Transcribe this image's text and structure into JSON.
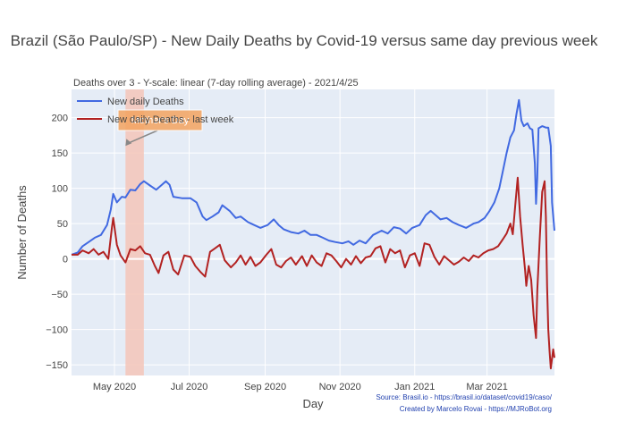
{
  "chart_data": {
    "type": "line",
    "title": "Brazil (São Paulo/SP) - New Daily Deaths by Covid-19 versus same day previous week",
    "subtitle": "Deaths over 3 - Y-scale: linear (7-day rolling average) - 2021/4/25",
    "xlabel": "Day",
    "ylabel": "Number of Deaths",
    "x_range": [
      "2020-03-27",
      "2021-04-25"
    ],
    "ylim": [
      -165,
      240
    ],
    "x_ticks": [
      {
        "date": "2020-05-01",
        "label": "May 2020"
      },
      {
        "date": "2020-07-01",
        "label": "Jul 2020"
      },
      {
        "date": "2020-09-01",
        "label": "Sep 2020"
      },
      {
        "date": "2020-11-01",
        "label": "Nov 2020"
      },
      {
        "date": "2021-01-01",
        "label": "Jan 2021"
      },
      {
        "date": "2021-03-01",
        "label": "Mar 2021"
      }
    ],
    "y_ticks": [
      {
        "value": 200,
        "label": "200"
      },
      {
        "value": 150,
        "label": "150"
      },
      {
        "value": 100,
        "label": "100"
      },
      {
        "value": 50,
        "label": "50"
      },
      {
        "value": 0,
        "label": "0"
      },
      {
        "value": -50,
        "label": "−50"
      },
      {
        "value": -100,
        "label": "−100"
      },
      {
        "value": -150,
        "label": "−150"
      }
    ],
    "grid": true,
    "legend_position": "top-left",
    "highlight_band": {
      "start": "2020-05-10",
      "end": "2020-05-25",
      "color": "#f4c6b8"
    },
    "annotation": {
      "text": "Mother's Day",
      "date": "2020-05-10",
      "y": 160,
      "bg": "#f4a460"
    },
    "footnotes": [
      "Source: Brasil.io - https://brasil.io/dataset/covid19/caso/",
      "Created by Marcelo Rovai - https://MJRoBot.org"
    ],
    "series": [
      {
        "name": "New daily Deaths",
        "color": "#4169e1",
        "points": [
          [
            "2020-03-27",
            6
          ],
          [
            "2020-04-01",
            9
          ],
          [
            "2020-04-05",
            18
          ],
          [
            "2020-04-10",
            24
          ],
          [
            "2020-04-15",
            30
          ],
          [
            "2020-04-20",
            34
          ],
          [
            "2020-04-25",
            48
          ],
          [
            "2020-04-28",
            70
          ],
          [
            "2020-04-30",
            92
          ],
          [
            "2020-05-03",
            80
          ],
          [
            "2020-05-07",
            88
          ],
          [
            "2020-05-10",
            87
          ],
          [
            "2020-05-14",
            98
          ],
          [
            "2020-05-18",
            97
          ],
          [
            "2020-05-22",
            106
          ],
          [
            "2020-05-25",
            110
          ],
          [
            "2020-05-30",
            104
          ],
          [
            "2020-06-04",
            98
          ],
          [
            "2020-06-08",
            104
          ],
          [
            "2020-06-12",
            110
          ],
          [
            "2020-06-15",
            105
          ],
          [
            "2020-06-18",
            88
          ],
          [
            "2020-06-25",
            86
          ],
          [
            "2020-07-02",
            86
          ],
          [
            "2020-07-07",
            80
          ],
          [
            "2020-07-12",
            60
          ],
          [
            "2020-07-15",
            55
          ],
          [
            "2020-07-20",
            60
          ],
          [
            "2020-07-25",
            66
          ],
          [
            "2020-07-28",
            76
          ],
          [
            "2020-08-03",
            68
          ],
          [
            "2020-08-08",
            58
          ],
          [
            "2020-08-12",
            60
          ],
          [
            "2020-08-18",
            52
          ],
          [
            "2020-08-23",
            48
          ],
          [
            "2020-08-28",
            44
          ],
          [
            "2020-09-03",
            48
          ],
          [
            "2020-09-08",
            56
          ],
          [
            "2020-09-12",
            48
          ],
          [
            "2020-09-16",
            42
          ],
          [
            "2020-09-22",
            38
          ],
          [
            "2020-09-28",
            36
          ],
          [
            "2020-10-03",
            40
          ],
          [
            "2020-10-08",
            34
          ],
          [
            "2020-10-13",
            34
          ],
          [
            "2020-10-18",
            30
          ],
          [
            "2020-10-23",
            26
          ],
          [
            "2020-10-28",
            24
          ],
          [
            "2020-11-03",
            22
          ],
          [
            "2020-11-08",
            25
          ],
          [
            "2020-11-12",
            20
          ],
          [
            "2020-11-17",
            26
          ],
          [
            "2020-11-22",
            22
          ],
          [
            "2020-11-28",
            34
          ],
          [
            "2020-12-05",
            40
          ],
          [
            "2020-12-10",
            36
          ],
          [
            "2020-12-15",
            45
          ],
          [
            "2020-12-20",
            43
          ],
          [
            "2020-12-25",
            36
          ],
          [
            "2020-12-30",
            44
          ],
          [
            "2021-01-05",
            48
          ],
          [
            "2021-01-10",
            62
          ],
          [
            "2021-01-14",
            68
          ],
          [
            "2021-01-18",
            62
          ],
          [
            "2021-01-22",
            56
          ],
          [
            "2021-01-27",
            58
          ],
          [
            "2021-02-01",
            52
          ],
          [
            "2021-02-06",
            48
          ],
          [
            "2021-02-12",
            44
          ],
          [
            "2021-02-18",
            50
          ],
          [
            "2021-02-22",
            52
          ],
          [
            "2021-02-27",
            58
          ],
          [
            "2021-03-03",
            68
          ],
          [
            "2021-03-07",
            80
          ],
          [
            "2021-03-11",
            100
          ],
          [
            "2021-03-14",
            125
          ],
          [
            "2021-03-17",
            150
          ],
          [
            "2021-03-20",
            172
          ],
          [
            "2021-03-23",
            182
          ],
          [
            "2021-03-25",
            205
          ],
          [
            "2021-03-27",
            225
          ],
          [
            "2021-03-29",
            196
          ],
          [
            "2021-03-31",
            188
          ],
          [
            "2021-04-03",
            192
          ],
          [
            "2021-04-05",
            185
          ],
          [
            "2021-04-07",
            183
          ],
          [
            "2021-04-09",
            135
          ],
          [
            "2021-04-10",
            78
          ],
          [
            "2021-04-11",
            115
          ],
          [
            "2021-04-12",
            185
          ],
          [
            "2021-04-15",
            188
          ],
          [
            "2021-04-18",
            186
          ],
          [
            "2021-04-20",
            186
          ],
          [
            "2021-04-22",
            160
          ],
          [
            "2021-04-23",
            80
          ],
          [
            "2021-04-25",
            40
          ]
        ]
      },
      {
        "name": "New daily Deaths - last week",
        "color": "#b22222",
        "points": [
          [
            "2020-03-27",
            6
          ],
          [
            "2020-04-01",
            6
          ],
          [
            "2020-04-05",
            12
          ],
          [
            "2020-04-10",
            8
          ],
          [
            "2020-04-14",
            14
          ],
          [
            "2020-04-18",
            6
          ],
          [
            "2020-04-22",
            10
          ],
          [
            "2020-04-26",
            0
          ],
          [
            "2020-04-29",
            45
          ],
          [
            "2020-04-30",
            58
          ],
          [
            "2020-05-03",
            20
          ],
          [
            "2020-05-06",
            5
          ],
          [
            "2020-05-10",
            -5
          ],
          [
            "2020-05-14",
            14
          ],
          [
            "2020-05-18",
            12
          ],
          [
            "2020-05-22",
            18
          ],
          [
            "2020-05-26",
            8
          ],
          [
            "2020-05-30",
            6
          ],
          [
            "2020-06-03",
            -10
          ],
          [
            "2020-06-06",
            -20
          ],
          [
            "2020-06-10",
            5
          ],
          [
            "2020-06-14",
            10
          ],
          [
            "2020-06-18",
            -15
          ],
          [
            "2020-06-22",
            -22
          ],
          [
            "2020-06-27",
            5
          ],
          [
            "2020-07-02",
            3
          ],
          [
            "2020-07-06",
            -10
          ],
          [
            "2020-07-10",
            -18
          ],
          [
            "2020-07-14",
            -25
          ],
          [
            "2020-07-18",
            10
          ],
          [
            "2020-07-22",
            15
          ],
          [
            "2020-07-26",
            20
          ],
          [
            "2020-07-30",
            -2
          ],
          [
            "2020-08-04",
            -12
          ],
          [
            "2020-08-08",
            -5
          ],
          [
            "2020-08-12",
            5
          ],
          [
            "2020-08-16",
            -8
          ],
          [
            "2020-08-20",
            3
          ],
          [
            "2020-08-24",
            -10
          ],
          [
            "2020-08-28",
            -5
          ],
          [
            "2020-09-02",
            6
          ],
          [
            "2020-09-06",
            14
          ],
          [
            "2020-09-10",
            -8
          ],
          [
            "2020-09-14",
            -12
          ],
          [
            "2020-09-18",
            -3
          ],
          [
            "2020-09-22",
            2
          ],
          [
            "2020-09-26",
            -8
          ],
          [
            "2020-10-01",
            4
          ],
          [
            "2020-10-05",
            -10
          ],
          [
            "2020-10-09",
            5
          ],
          [
            "2020-10-13",
            -5
          ],
          [
            "2020-10-17",
            -10
          ],
          [
            "2020-10-21",
            8
          ],
          [
            "2020-10-25",
            5
          ],
          [
            "2020-10-29",
            -3
          ],
          [
            "2020-11-02",
            -12
          ],
          [
            "2020-11-06",
            0
          ],
          [
            "2020-11-10",
            -8
          ],
          [
            "2020-11-14",
            4
          ],
          [
            "2020-11-18",
            -6
          ],
          [
            "2020-11-22",
            2
          ],
          [
            "2020-11-26",
            4
          ],
          [
            "2020-11-30",
            15
          ],
          [
            "2020-12-04",
            18
          ],
          [
            "2020-12-08",
            -5
          ],
          [
            "2020-12-12",
            14
          ],
          [
            "2020-12-16",
            8
          ],
          [
            "2020-12-20",
            12
          ],
          [
            "2020-12-24",
            -12
          ],
          [
            "2020-12-28",
            5
          ],
          [
            "2021-01-01",
            8
          ],
          [
            "2021-01-05",
            -10
          ],
          [
            "2021-01-09",
            22
          ],
          [
            "2021-01-13",
            20
          ],
          [
            "2021-01-17",
            3
          ],
          [
            "2021-01-21",
            -8
          ],
          [
            "2021-01-25",
            4
          ],
          [
            "2021-01-29",
            -2
          ],
          [
            "2021-02-02",
            -8
          ],
          [
            "2021-02-06",
            -4
          ],
          [
            "2021-02-10",
            2
          ],
          [
            "2021-02-14",
            -3
          ],
          [
            "2021-02-18",
            5
          ],
          [
            "2021-02-22",
            2
          ],
          [
            "2021-02-26",
            8
          ],
          [
            "2021-03-02",
            12
          ],
          [
            "2021-03-06",
            14
          ],
          [
            "2021-03-10",
            18
          ],
          [
            "2021-03-14",
            28
          ],
          [
            "2021-03-17",
            36
          ],
          [
            "2021-03-20",
            50
          ],
          [
            "2021-03-22",
            35
          ],
          [
            "2021-03-24",
            75
          ],
          [
            "2021-03-26",
            115
          ],
          [
            "2021-03-28",
            60
          ],
          [
            "2021-03-30",
            20
          ],
          [
            "2021-04-01",
            -15
          ],
          [
            "2021-04-02",
            -38
          ],
          [
            "2021-04-04",
            -10
          ],
          [
            "2021-04-06",
            -30
          ],
          [
            "2021-04-08",
            -80
          ],
          [
            "2021-04-10",
            -112
          ],
          [
            "2021-04-11",
            -45
          ],
          [
            "2021-04-13",
            30
          ],
          [
            "2021-04-15",
            95
          ],
          [
            "2021-04-17",
            110
          ],
          [
            "2021-04-18",
            60
          ],
          [
            "2021-04-19",
            -40
          ],
          [
            "2021-04-20",
            -100
          ],
          [
            "2021-04-21",
            -130
          ],
          [
            "2021-04-22",
            -155
          ],
          [
            "2021-04-24",
            -128
          ],
          [
            "2021-04-25",
            -140
          ]
        ]
      }
    ]
  }
}
